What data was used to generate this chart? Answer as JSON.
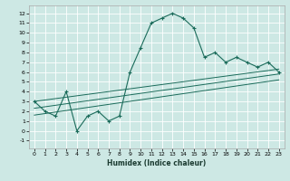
{
  "xlabel": "Humidex (Indice chaleur)",
  "bg_color": "#cde8e4",
  "grid_color": "#ffffff",
  "line_color": "#1a6b5a",
  "xlim": [
    -0.5,
    23.5
  ],
  "ylim": [
    -1.8,
    12.8
  ],
  "xticks": [
    0,
    1,
    2,
    3,
    4,
    5,
    6,
    7,
    8,
    9,
    10,
    11,
    12,
    13,
    14,
    15,
    16,
    17,
    18,
    19,
    20,
    21,
    22,
    23
  ],
  "yticks": [
    -1,
    0,
    1,
    2,
    3,
    4,
    5,
    6,
    7,
    8,
    9,
    10,
    11,
    12
  ],
  "curve_x": [
    0,
    1,
    2,
    3,
    4,
    5,
    6,
    7,
    8,
    9,
    10,
    11,
    12,
    13,
    14,
    15,
    16,
    17,
    18,
    19,
    20,
    21,
    22,
    23
  ],
  "curve_y": [
    3,
    2,
    1.5,
    4,
    0,
    1.5,
    2,
    1,
    1.5,
    6,
    8.5,
    11,
    11.5,
    12,
    11.5,
    10.5,
    7.5,
    8,
    7,
    7.5,
    7,
    6.5,
    7,
    6
  ],
  "line1_x": [
    0,
    23
  ],
  "line1_y": [
    3.0,
    6.3
  ],
  "line2_x": [
    0,
    23
  ],
  "line2_y": [
    2.3,
    5.8
  ],
  "line3_x": [
    0,
    23
  ],
  "line3_y": [
    1.6,
    5.2
  ]
}
